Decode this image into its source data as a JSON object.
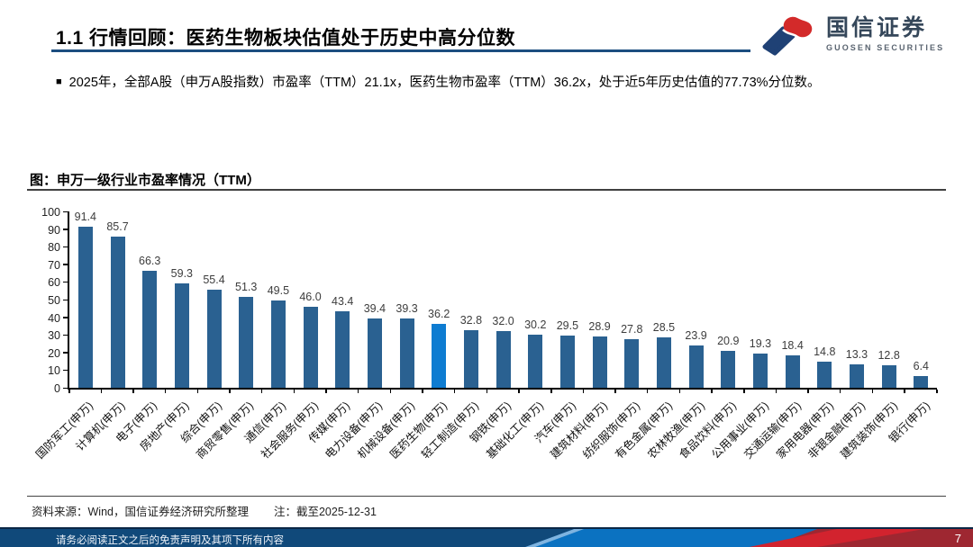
{
  "header": {
    "title": "1.1 行情回顾：医药生物板块估值处于历史中高分位数",
    "logo": {
      "cn": "国信证券",
      "en": "GUOSEN SECURITIES",
      "mark_blue": "#1f4175",
      "mark_red": "#d32a2a"
    }
  },
  "bullet": {
    "marker": "■",
    "text": "2025年，全部A股（申万A股指数）市盈率（TTM）21.1x，医药生物市盈率（TTM）36.2x，处于近5年历史估值的77.73%分位数。"
  },
  "chart_data": {
    "type": "bar",
    "title": "图：申万一级行业市盈率情况（TTM）",
    "categories": [
      "国防军工(申万)",
      "计算机(申万)",
      "电子(申万)",
      "房地产(申万)",
      "综合(申万)",
      "商贸零售(申万)",
      "通信(申万)",
      "社会服务(申万)",
      "传媒(申万)",
      "电力设备(申万)",
      "机械设备(申万)",
      "医药生物(申万)",
      "轻工制造(申万)",
      "钢铁(申万)",
      "基础化工(申万)",
      "汽车(申万)",
      "建筑材料(申万)",
      "纺织服饰(申万)",
      "有色金属(申万)",
      "农林牧渔(申万)",
      "食品饮料(申万)",
      "公用事业(申万)",
      "交通运输(申万)",
      "家用电器(申万)",
      "非银金融(申万)",
      "建筑装饰(申万)",
      "银行(申万)"
    ],
    "values": [
      91.4,
      85.7,
      66.3,
      59.3,
      55.4,
      51.3,
      49.5,
      46.0,
      43.4,
      39.4,
      39.3,
      36.2,
      32.8,
      32.0,
      30.2,
      29.5,
      28.9,
      27.8,
      28.5,
      23.9,
      20.9,
      19.3,
      18.4,
      14.8,
      13.3,
      12.8,
      6.4
    ],
    "highlight_index": 11,
    "highlight_category": "医药生物(申万)",
    "bar_color": "#2a6191",
    "highlight_color": "#0e7cd1",
    "xlabel": "",
    "ylabel": "",
    "ylim": [
      0,
      100
    ],
    "ytick_step": 10,
    "grid": false,
    "legend": false,
    "value_labels": true
  },
  "footer": {
    "source": "资料来源：Wind，国信证券经济研究所整理",
    "note": "注：截至2025-12-31",
    "disclaimer": "请务必阅读正文之后的免责声明及其项下所有内容",
    "page": "7"
  }
}
